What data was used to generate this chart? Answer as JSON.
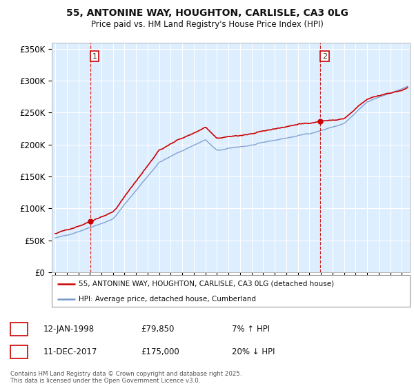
{
  "title_line1": "55, ANTONINE WAY, HOUGHTON, CARLISLE, CA3 0LG",
  "title_line2": "Price paid vs. HM Land Registry's House Price Index (HPI)",
  "ylim": [
    0,
    360000
  ],
  "yticks": [
    0,
    50000,
    100000,
    150000,
    200000,
    250000,
    300000,
    350000
  ],
  "ytick_labels": [
    "£0",
    "£50K",
    "£100K",
    "£150K",
    "£200K",
    "£250K",
    "£300K",
    "£350K"
  ],
  "legend_entries": [
    "55, ANTONINE WAY, HOUGHTON, CARLISLE, CA3 0LG (detached house)",
    "HPI: Average price, detached house, Cumberland"
  ],
  "legend_colors": [
    "#cc0000",
    "#88aadd"
  ],
  "annotation1": {
    "label": "1",
    "date": "12-JAN-1998",
    "price": "£79,850",
    "pct": "7% ↑ HPI"
  },
  "annotation2": {
    "label": "2",
    "date": "11-DEC-2017",
    "price": "£175,000",
    "pct": "20% ↓ HPI"
  },
  "footer": "Contains HM Land Registry data © Crown copyright and database right 2025.\nThis data is licensed under the Open Government Licence v3.0.",
  "transaction1_year": 1998.04,
  "transaction2_year": 2017.95,
  "transaction1_price": 79850,
  "transaction2_price": 175000,
  "hpi_color": "#7799cc",
  "price_color": "#cc0000",
  "chart_bg": "#ddeeff",
  "background_color": "#ffffff",
  "grid_color": "#ffffff",
  "start_year": 1995.0,
  "end_year": 2025.5
}
